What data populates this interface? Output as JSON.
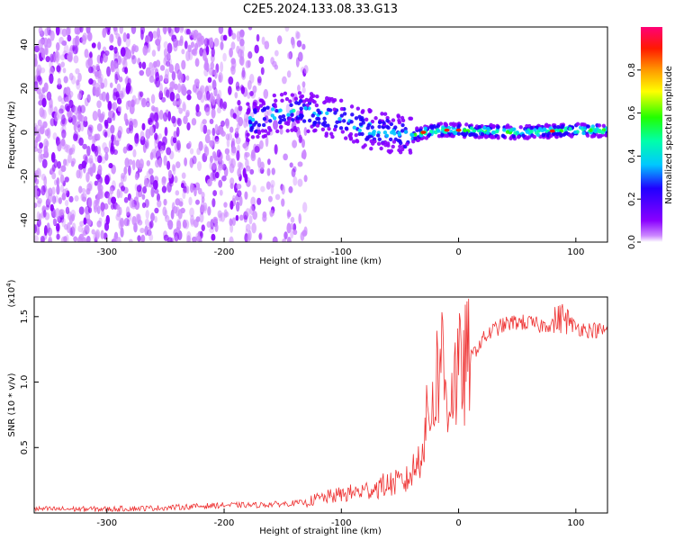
{
  "title": "C2E5.2024.133.08.33.G13",
  "colors": {
    "snr_line": "#ee3333",
    "background": "#ffffff",
    "axes": "#000000"
  },
  "chart_data": [
    {
      "type": "heatmap",
      "xlabel": "Height of straight line (km)",
      "ylabel": "Frequency (Hz)",
      "xlim": [
        -362,
        127
      ],
      "ylim": [
        -50,
        48
      ],
      "xticks": [
        -300,
        -200,
        -100,
        0,
        100
      ],
      "yticks": [
        -40,
        -20,
        0,
        20,
        40
      ],
      "colorbar": {
        "label": "Normalized spectral amplitude",
        "range": [
          0.0,
          1.0
        ],
        "ticks": [
          0.0,
          0.2,
          0.4,
          0.6,
          0.8
        ],
        "colormap": "hsv-like (purple → blue → cyan → green → yellow → red → magenta)"
      },
      "ridge_center_frequency": [
        {
          "x": -180,
          "y": 4
        },
        {
          "x": -160,
          "y": 8
        },
        {
          "x": -140,
          "y": 10
        },
        {
          "x": -120,
          "y": 8
        },
        {
          "x": -100,
          "y": 6
        },
        {
          "x": -80,
          "y": 2
        },
        {
          "x": -60,
          "y": 0
        },
        {
          "x": -40,
          "y": -2
        },
        {
          "x": -30,
          "y": 0
        },
        {
          "x": -20,
          "y": 1
        },
        {
          "x": 0,
          "y": 1
        },
        {
          "x": 50,
          "y": 0
        },
        {
          "x": 100,
          "y": 1
        },
        {
          "x": 127,
          "y": 1
        }
      ]
    },
    {
      "type": "line",
      "xlabel": "Height of straight line (km)",
      "ylabel": "SNR (10 * v/v)",
      "ylabel_multiplier": "(x10",
      "ylabel_multiplier_exp": "4",
      "ylabel_multiplier_close": ")",
      "xlim": [
        -362,
        127
      ],
      "ylim": [
        0.0,
        1.65
      ],
      "xticks": [
        -300,
        -200,
        -100,
        0,
        100
      ],
      "xtick_labels": [
        "-300",
        "-200",
        "-100",
        "0",
        "100"
      ],
      "yticks": [
        0.5,
        1.0,
        1.5
      ],
      "ytick_labels": [
        "0.5",
        "1.0",
        "1.5"
      ],
      "series": [
        {
          "x": [
            -362,
            -300,
            -250,
            -200,
            -175,
            -150,
            -130,
            -120,
            -100,
            -80,
            -60,
            -45,
            -35,
            -28,
            -20,
            -15,
            -10,
            -5,
            0,
            10,
            20,
            30,
            40,
            50,
            60,
            70,
            80,
            85,
            90,
            95,
            100,
            110,
            127
          ],
          "y": [
            0.03,
            0.03,
            0.04,
            0.06,
            0.06,
            0.07,
            0.08,
            0.11,
            0.14,
            0.17,
            0.22,
            0.24,
            0.38,
            0.65,
            0.95,
            1.25,
            0.85,
            1.0,
            1.05,
            1.18,
            1.32,
            1.4,
            1.44,
            1.46,
            1.45,
            1.43,
            1.45,
            1.48,
            1.5,
            1.45,
            1.42,
            1.4,
            1.39
          ]
        }
      ]
    }
  ],
  "top_xtick_labels": [
    "-300",
    "-200",
    "-100",
    "0",
    "100"
  ],
  "top_ytick_labels": [
    "-40",
    "-20",
    "0",
    "20",
    "40"
  ],
  "colorbar_tick_labels": [
    "0.0",
    "0.2",
    "0.4",
    "0.6",
    "0.8"
  ]
}
